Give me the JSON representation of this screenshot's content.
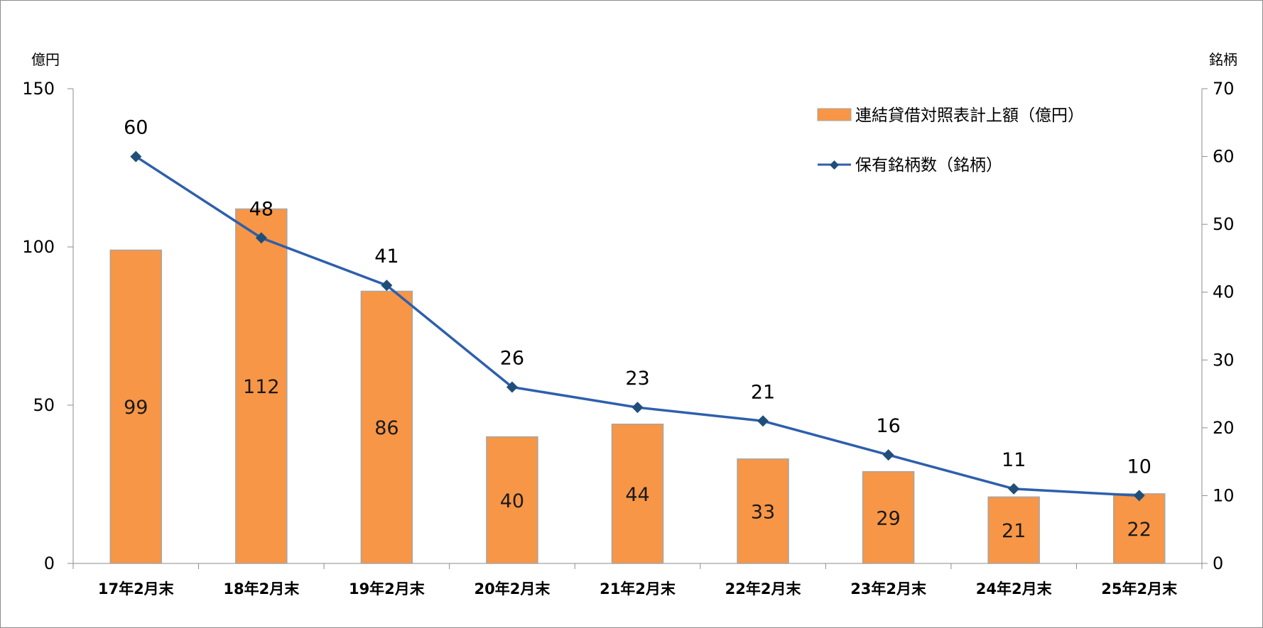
{
  "chart_data": {
    "type": "bar",
    "title": "",
    "left_axis_unit": "億円",
    "right_axis_unit": "銘柄",
    "categories": [
      "17年2月末",
      "18年2月末",
      "19年2月末",
      "20年2月末",
      "21年2月末",
      "22年2月末",
      "23年2月末",
      "24年2月末",
      "25年2月末"
    ],
    "ylim": [
      0,
      150
    ],
    "y_ticks": [
      0,
      50,
      100,
      150
    ],
    "y2lim": [
      0,
      70
    ],
    "y2_ticks": [
      0,
      10,
      20,
      30,
      40,
      50,
      60,
      70
    ],
    "series": [
      {
        "name": "連結貸借対照表計上額（億円）",
        "type": "bar",
        "axis": "left",
        "values": [
          99,
          112,
          86,
          40,
          44,
          33,
          29,
          21,
          22
        ],
        "color": "#f79646",
        "edge_color": "#a6a6a6"
      },
      {
        "name": "保有銘柄数（銘柄）",
        "type": "line",
        "axis": "right",
        "values": [
          60,
          48,
          41,
          26,
          23,
          21,
          16,
          11,
          10
        ],
        "color": "#2e5fac",
        "marker": "diamond",
        "marker_color": "#1f4e79"
      }
    ],
    "grid": false,
    "legend_position": "top-right"
  }
}
